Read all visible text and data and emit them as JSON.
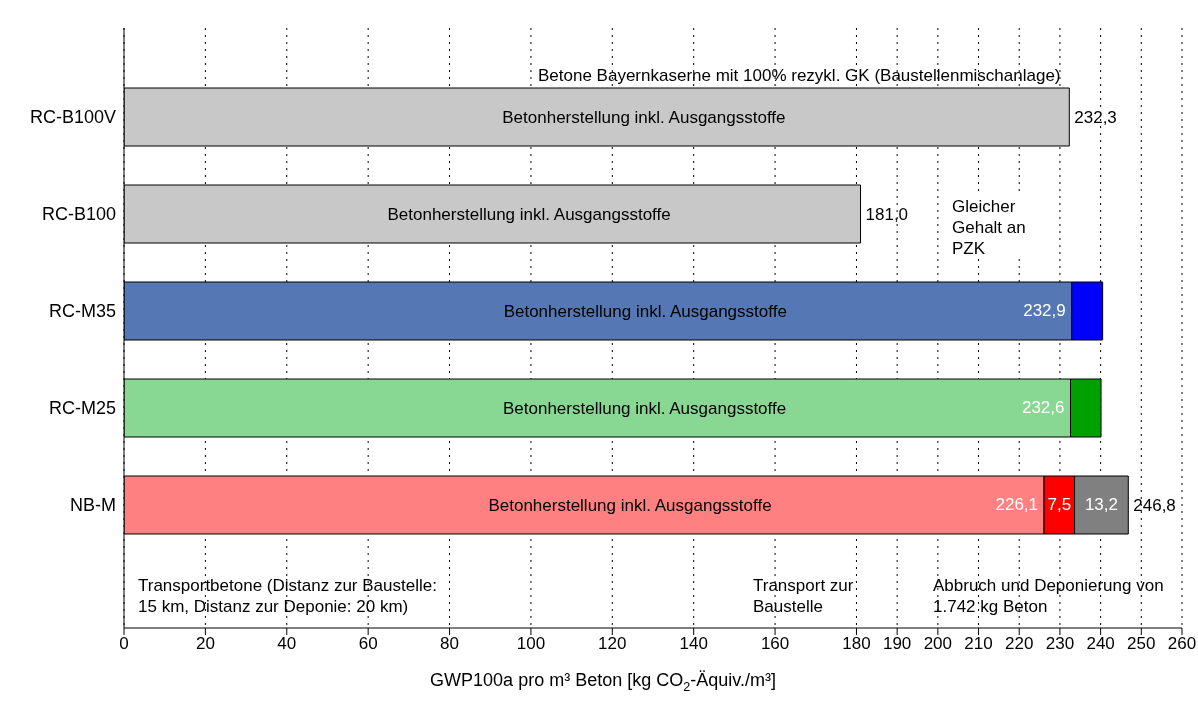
{
  "chart_data": {
    "type": "bar",
    "orientation": "horizontal",
    "stacked": true,
    "categories": [
      "RC-B100V",
      "RC-B100",
      "RC-M35",
      "RC-M25",
      "NB-M"
    ],
    "series": [
      {
        "colors": [
          "#c8c8c8",
          "#c8c8c8",
          "#5577b3",
          "#88d893",
          "#ff8080"
        ],
        "values": [
          232.3,
          181.0,
          232.9,
          232.6,
          226.1
        ],
        "value_labels": [
          null,
          null,
          "232,9",
          "232,6",
          "226,1"
        ]
      },
      {
        "colors": [
          "#0000ff",
          "#0000ff",
          "#0000ff",
          "#00a000",
          "#ff0000"
        ],
        "values": [
          null,
          null,
          7.6,
          7.5,
          7.5
        ],
        "value_labels": [
          null,
          null,
          null,
          null,
          "7,5"
        ]
      },
      {
        "colors": [
          "#808080",
          "#808080",
          "#808080",
          "#808080",
          "#808080"
        ],
        "values": [
          null,
          null,
          null,
          null,
          13.2
        ],
        "value_labels": [
          null,
          null,
          null,
          null,
          "13,2"
        ]
      }
    ],
    "totals": [
      "232,3",
      "181,0",
      null,
      null,
      "246,8"
    ],
    "xlim": [
      0,
      260
    ],
    "xticks": [
      0,
      20,
      40,
      60,
      80,
      100,
      120,
      140,
      160,
      180,
      190,
      200,
      210,
      220,
      230,
      240,
      250,
      260
    ],
    "grid": "x",
    "xlabel": "GWP100a pro m³ Beton [kg CO$_{2}$-Äquiv./m³]",
    "annotations": [
      "Betonherstellung inkl. Ausgangsstoffe",
      "Betonherstellung inkl. Ausgangsstoffe",
      "Betonherstellung inkl. Ausgangsstoffe",
      "Betonherstellung inkl. Ausgangsstoffe",
      "Betonherstellung inkl. Ausgangsstoffe",
      "Betone Bayernkaserne mit 100% rezykl. GK (Baustellenmischanlage)",
      "Transportbetone (Distanz zur Baustelle: 15 km, Distanz zur Deponie: 20 km)",
      "Gleicher Gehalt an PZK",
      "Transport zur Baustelle",
      "Abbruch und Deponierung von 1.742 kg Beton"
    ]
  }
}
